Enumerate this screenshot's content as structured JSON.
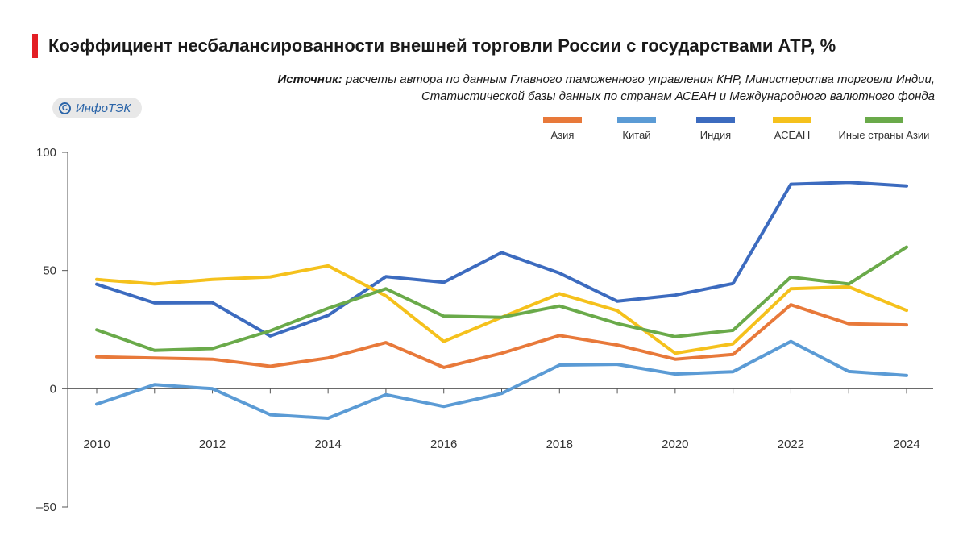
{
  "title": "Коэффициент несбалансированности внешней торговли России с государствами АТР, %",
  "source": {
    "label": "Источник:",
    "text": " расчеты автора по данным Главного таможенного управления КНР, Министерства торговли Индии, Статистической базы данных по странам АСЕАН и Международного валютного фонда"
  },
  "badge": {
    "icon": "copyright-icon",
    "text": "ИнфоТЭК"
  },
  "chart_data": {
    "type": "line",
    "title": "Коэффициент несбалансированности внешней торговли России с государствами АТР, %",
    "xlabel": "",
    "ylabel": "",
    "x": [
      2010,
      2011,
      2012,
      2013,
      2014,
      2015,
      2016,
      2017,
      2018,
      2019,
      2020,
      2021,
      2022,
      2023,
      2024
    ],
    "x_tick_labels": [
      "2010",
      "2012",
      "2014",
      "2016",
      "2018",
      "2020",
      "2022",
      "2024"
    ],
    "x_tick_values": [
      2010,
      2012,
      2014,
      2016,
      2018,
      2020,
      2022,
      2024
    ],
    "y_tick_labels": [
      "100",
      "50",
      "0",
      "–50"
    ],
    "y_tick_values": [
      100,
      50,
      0,
      -50
    ],
    "ylim": [
      -50,
      100
    ],
    "xlim": [
      2010,
      2024
    ],
    "grid": false,
    "legend_position": "top-right",
    "series": [
      {
        "name": "Азия",
        "color": "#e8793a",
        "values": [
          13.5,
          13,
          12.5,
          9.5,
          13,
          19.5,
          9,
          15,
          22.5,
          18.5,
          12.5,
          14.5,
          35.5,
          27.5,
          27
        ]
      },
      {
        "name": "Китай",
        "color": "#5b9bd5",
        "values": [
          -6.5,
          1.7,
          0,
          -11,
          -12.5,
          -2.5,
          -7.5,
          -2,
          10,
          10.3,
          6.2,
          7.2,
          20,
          7.3,
          5.6
        ]
      },
      {
        "name": "Индия",
        "color": "#3c6bbf",
        "values": [
          44.2,
          36.3,
          36.4,
          22.3,
          31,
          47.4,
          45,
          57.6,
          48.9,
          37,
          39.6,
          44.5,
          86.5,
          87.3,
          85.8
        ]
      },
      {
        "name": "АСЕАН",
        "color": "#f5c11c",
        "values": [
          46.2,
          44.3,
          46.2,
          47.3,
          52,
          39.3,
          20,
          30.2,
          40.2,
          33,
          15,
          19,
          42.3,
          43.1,
          33.1
        ]
      },
      {
        "name": "Иные страны Азии",
        "color": "#6aaa4a",
        "values": [
          24.9,
          16.2,
          17,
          24.5,
          34,
          42.3,
          30.7,
          30.2,
          35,
          27.6,
          22,
          24.7,
          47.2,
          44.3,
          59.9
        ]
      }
    ]
  }
}
